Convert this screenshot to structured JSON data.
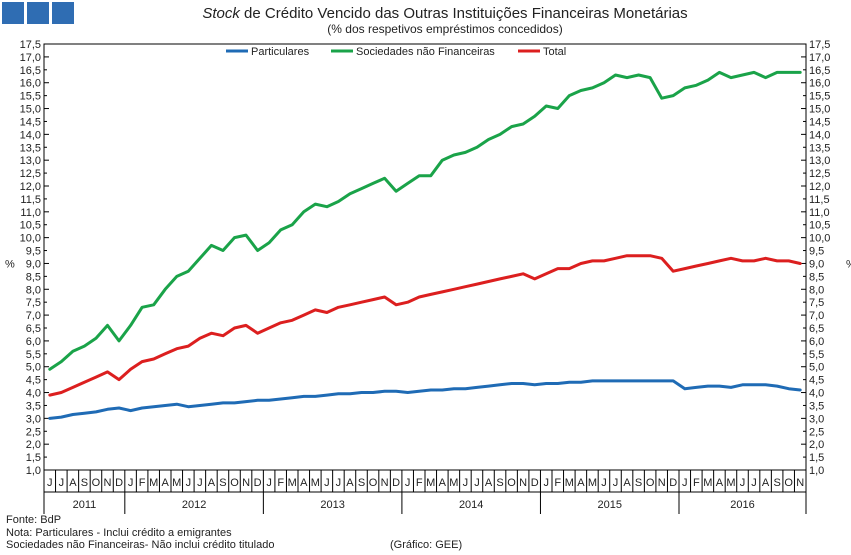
{
  "chart_data": {
    "type": "line",
    "title_italic": "Stock",
    "title_rest": " de Crédito Vencido das Outras Instituições Financeiras Monetárias",
    "subtitle": "(% dos respetivos empréstimos concedidos)",
    "ylabel": "%",
    "ylim": [
      1.0,
      17.5
    ],
    "ytick_step": 0.5,
    "yticks": [
      "1,0",
      "1,5",
      "2,0",
      "2,5",
      "3,0",
      "3,5",
      "4,0",
      "4,5",
      "5,0",
      "5,5",
      "6,0",
      "6,5",
      "7,0",
      "7,5",
      "8,0",
      "8,5",
      "9,0",
      "9,5",
      "10,0",
      "10,5",
      "11,0",
      "11,5",
      "12,0",
      "12,5",
      "13,0",
      "13,5",
      "14,0",
      "14,5",
      "15,0",
      "15,5",
      "16,0",
      "16,5",
      "17,0",
      "17,5"
    ],
    "month_labels": [
      "J",
      "J",
      "A",
      "S",
      "O",
      "N",
      "D",
      "J",
      "F",
      "M",
      "A",
      "M",
      "J",
      "J",
      "A",
      "S",
      "O",
      "N",
      "D",
      "J",
      "F",
      "M",
      "A",
      "M",
      "J",
      "J",
      "A",
      "S",
      "O",
      "N",
      "D",
      "J",
      "F",
      "M",
      "A",
      "M",
      "J",
      "J",
      "A",
      "S",
      "O",
      "N",
      "D",
      "J",
      "F",
      "M",
      "A",
      "M",
      "J",
      "J",
      "A",
      "S",
      "O",
      "N",
      "D",
      "J",
      "F",
      "M",
      "A",
      "M",
      "J",
      "J",
      "A",
      "S",
      "O",
      "N"
    ],
    "years": [
      {
        "label": "2011",
        "start": 0,
        "end": 6
      },
      {
        "label": "2012",
        "start": 7,
        "end": 18
      },
      {
        "label": "2013",
        "start": 19,
        "end": 30
      },
      {
        "label": "2014",
        "start": 31,
        "end": 42
      },
      {
        "label": "2015",
        "start": 43,
        "end": 54
      },
      {
        "label": "2016",
        "start": 55,
        "end": 65
      }
    ],
    "legend": [
      "Particulares",
      "Sociedades não Financeiras",
      "Total"
    ],
    "series": [
      {
        "name": "Particulares",
        "color": "#1f6bb5",
        "values": [
          3.0,
          3.05,
          3.15,
          3.2,
          3.25,
          3.35,
          3.4,
          3.3,
          3.4,
          3.45,
          3.5,
          3.55,
          3.45,
          3.5,
          3.55,
          3.6,
          3.6,
          3.65,
          3.7,
          3.7,
          3.75,
          3.8,
          3.85,
          3.85,
          3.9,
          3.95,
          3.95,
          4.0,
          4.0,
          4.05,
          4.05,
          4.0,
          4.05,
          4.1,
          4.1,
          4.15,
          4.15,
          4.2,
          4.25,
          4.3,
          4.35,
          4.35,
          4.3,
          4.35,
          4.35,
          4.4,
          4.4,
          4.45,
          4.45,
          4.45,
          4.45,
          4.45,
          4.45,
          4.45,
          4.45,
          4.15,
          4.2,
          4.25,
          4.25,
          4.2,
          4.3,
          4.3,
          4.3,
          4.25,
          4.15,
          4.1
        ]
      },
      {
        "name": "Sociedades não Financeiras",
        "color": "#1aa349",
        "values": [
          4.9,
          5.2,
          5.6,
          5.8,
          6.1,
          6.6,
          6.0,
          6.6,
          7.3,
          7.4,
          8.0,
          8.5,
          8.7,
          9.2,
          9.7,
          9.5,
          10.0,
          10.1,
          9.5,
          9.8,
          10.3,
          10.5,
          11.0,
          11.3,
          11.2,
          11.4,
          11.7,
          11.9,
          12.1,
          12.3,
          11.8,
          12.1,
          12.4,
          12.4,
          13.0,
          13.2,
          13.3,
          13.5,
          13.8,
          14.0,
          14.3,
          14.4,
          14.7,
          15.1,
          15.0,
          15.5,
          15.7,
          15.8,
          16.0,
          16.3,
          16.2,
          16.3,
          16.2,
          15.4,
          15.5,
          15.8,
          15.9,
          16.1,
          16.4,
          16.2,
          16.3,
          16.4,
          16.2,
          16.4,
          16.4,
          16.4
        ]
      },
      {
        "name": "Total",
        "color": "#dc1f1f",
        "values": [
          3.9,
          4.0,
          4.2,
          4.4,
          4.6,
          4.8,
          4.5,
          4.9,
          5.2,
          5.3,
          5.5,
          5.7,
          5.8,
          6.1,
          6.3,
          6.2,
          6.5,
          6.6,
          6.3,
          6.5,
          6.7,
          6.8,
          7.0,
          7.2,
          7.1,
          7.3,
          7.4,
          7.5,
          7.6,
          7.7,
          7.4,
          7.5,
          7.7,
          7.8,
          7.9,
          8.0,
          8.1,
          8.2,
          8.3,
          8.4,
          8.5,
          8.6,
          8.4,
          8.6,
          8.8,
          8.8,
          9.0,
          9.1,
          9.1,
          9.2,
          9.3,
          9.3,
          9.3,
          9.2,
          8.7,
          8.8,
          8.9,
          9.0,
          9.1,
          9.2,
          9.1,
          9.1,
          9.2,
          9.1,
          9.1,
          9.0
        ]
      }
    ]
  },
  "footer": {
    "fonte": "Fonte: BdP",
    "nota1": "Nota: Particulares - Inclui crédito a emigrantes",
    "nota2": "Sociedades não Financeiras- Não inclui crédito titulado",
    "credit": "(Gráfico: GEE)"
  }
}
